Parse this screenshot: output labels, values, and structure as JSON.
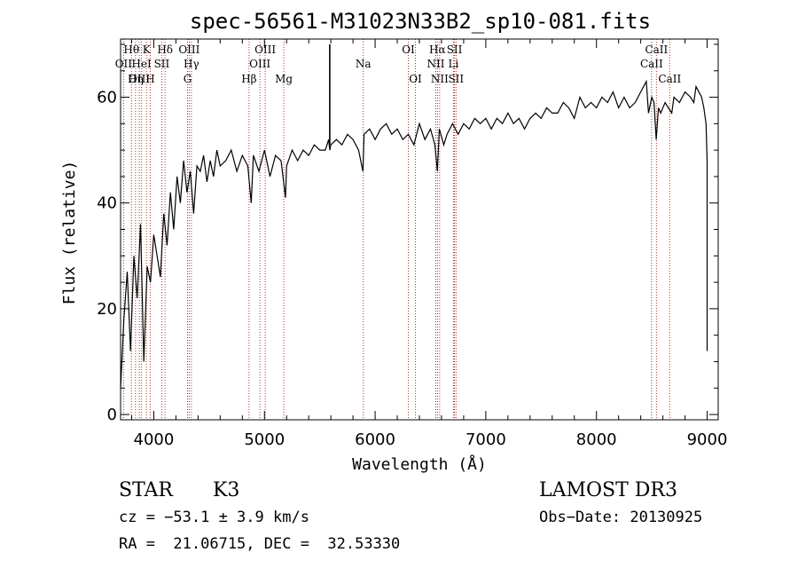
{
  "chart_data": {
    "type": "line",
    "title": "spec-56561-M31023N33B2_sp10-081.fits",
    "xlabel": "Wavelength (Å)",
    "ylabel": "Flux (relative)",
    "xlim": [
      3700,
      9100
    ],
    "ylim": [
      -1,
      71
    ],
    "x_ticks": [
      4000,
      5000,
      6000,
      7000,
      8000,
      9000
    ],
    "y_ticks": [
      0,
      20,
      40,
      60
    ],
    "series": [
      {
        "name": "spectrum",
        "x": [
          3700,
          3730,
          3760,
          3790,
          3820,
          3850,
          3880,
          3910,
          3940,
          3970,
          4000,
          4030,
          4060,
          4090,
          4120,
          4150,
          4180,
          4210,
          4240,
          4270,
          4300,
          4330,
          4360,
          4390,
          4420,
          4450,
          4480,
          4510,
          4540,
          4570,
          4600,
          4650,
          4700,
          4750,
          4800,
          4850,
          4880,
          4900,
          4950,
          5000,
          5050,
          5100,
          5150,
          5190,
          5200,
          5250,
          5300,
          5350,
          5400,
          5450,
          5500,
          5550,
          5580,
          5590,
          5600,
          5650,
          5700,
          5750,
          5800,
          5850,
          5890,
          5900,
          5950,
          6000,
          6050,
          6100,
          6150,
          6200,
          6250,
          6300,
          6350,
          6400,
          6450,
          6500,
          6540,
          6563,
          6580,
          6620,
          6650,
          6700,
          6750,
          6800,
          6850,
          6900,
          6950,
          7000,
          7050,
          7100,
          7150,
          7200,
          7250,
          7300,
          7350,
          7400,
          7450,
          7500,
          7550,
          7600,
          7650,
          7700,
          7750,
          7800,
          7850,
          7900,
          7950,
          8000,
          8050,
          8100,
          8150,
          8200,
          8250,
          8300,
          8350,
          8400,
          8450,
          8470,
          8500,
          8520,
          8540,
          8560,
          8580,
          8620,
          8650,
          8680,
          8700,
          8750,
          8800,
          8850,
          8880,
          8900,
          8950,
          8970,
          8990,
          9000
        ],
        "y": [
          5,
          18,
          27,
          12,
          30,
          22,
          36,
          10,
          28,
          25,
          34,
          30,
          26,
          38,
          32,
          42,
          35,
          45,
          40,
          48,
          42,
          46,
          38,
          47,
          46,
          49,
          44,
          48,
          45,
          50,
          47,
          48,
          50,
          46,
          49,
          47,
          40,
          49,
          46,
          50,
          45,
          49,
          48,
          41,
          47,
          50,
          48,
          50,
          49,
          51,
          50,
          50,
          52,
          50,
          51,
          52,
          51,
          53,
          52,
          50,
          46,
          53,
          54,
          52,
          54,
          55,
          53,
          54,
          52,
          53,
          51,
          55,
          52,
          54,
          51,
          46,
          54,
          51,
          53,
          55,
          53,
          55,
          54,
          56,
          55,
          56,
          54,
          56,
          55,
          57,
          55,
          56,
          54,
          56,
          57,
          56,
          58,
          57,
          57,
          59,
          58,
          56,
          60,
          58,
          59,
          58,
          60,
          59,
          61,
          58,
          60,
          58,
          59,
          61,
          63,
          57,
          60,
          59,
          52,
          58,
          57,
          59,
          58,
          57,
          60,
          59,
          61,
          60,
          59,
          62,
          60,
          58,
          55,
          48
        ]
      }
    ],
    "spike": {
      "x": 5590,
      "y": 70
    },
    "dropoff": {
      "x": 9000,
      "y_from": 48,
      "y_to": 12
    },
    "lines": [
      {
        "label": "OII",
        "x": 3727,
        "row": 2
      },
      {
        "label": "Hθ",
        "x": 3798,
        "row": 1
      },
      {
        "label": "OIII",
        "x": 3869,
        "row": 3
      },
      {
        "label": "HeI",
        "x": 3889,
        "row": 2
      },
      {
        "label": "Hη",
        "x": 3835,
        "row": 3
      },
      {
        "label": "K",
        "x": 3934,
        "row": 1
      },
      {
        "label": "H",
        "x": 3968,
        "row": 3
      },
      {
        "label": "SII",
        "x": 4072,
        "row": 2
      },
      {
        "label": "Hδ",
        "x": 4102,
        "row": 1
      },
      {
        "label": "OIII",
        "x": 4320,
        "row": 1
      },
      {
        "label": "Hγ",
        "x": 4340,
        "row": 2
      },
      {
        "label": "G",
        "x": 4305,
        "row": 3
      },
      {
        "label": "Hβ",
        "x": 4861,
        "row": 3
      },
      {
        "label": "OIII",
        "x": 4959,
        "row": 2
      },
      {
        "label": "OIII",
        "x": 5007,
        "row": 1
      },
      {
        "label": "Mg",
        "x": 5175,
        "row": 3
      },
      {
        "label": "Na",
        "x": 5893,
        "row": 2
      },
      {
        "label": "OI",
        "x": 6300,
        "row": 1
      },
      {
        "label": "OI",
        "x": 6364,
        "row": 3
      },
      {
        "label": "NII",
        "x": 6548,
        "row": 2
      },
      {
        "label": "Hα",
        "x": 6563,
        "row": 1
      },
      {
        "label": "NII",
        "x": 6583,
        "row": 3
      },
      {
        "label": "SII",
        "x": 6717,
        "row": 1
      },
      {
        "label": "Li",
        "x": 6708,
        "row": 2
      },
      {
        "label": "SII",
        "x": 6731,
        "row": 3
      },
      {
        "label": "CaII",
        "x": 8498,
        "row": 2
      },
      {
        "label": "CaII",
        "x": 8542,
        "row": 1
      },
      {
        "label": "CaII",
        "x": 8662,
        "row": 3
      }
    ]
  },
  "info": {
    "class_label": "STAR",
    "subclass": "K3",
    "cz": "cz = −53.1 ± 3.9 km/s",
    "coords": "RA =  21.06715, DEC =  32.53330",
    "survey": "LAMOST DR3",
    "obs_date": "Obs−Date: 20130925"
  }
}
